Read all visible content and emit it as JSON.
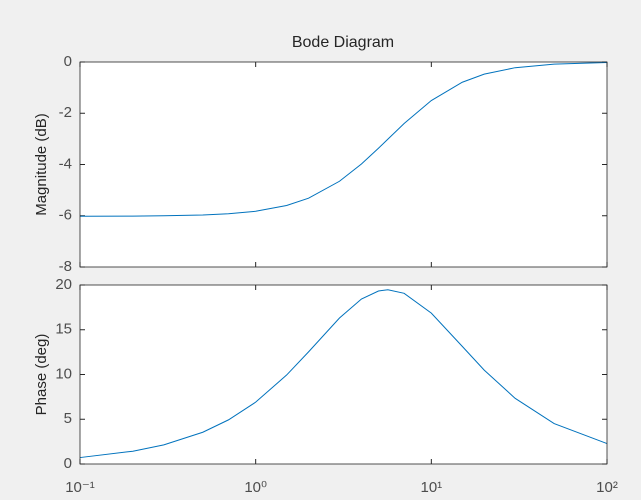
{
  "chart_data": [
    {
      "type": "line",
      "title": "Bode Diagram",
      "ylabel": "Magnitude (dB)",
      "xscale": "log",
      "x": [
        0.1,
        0.2,
        0.3,
        0.5,
        0.7,
        1,
        1.5,
        2,
        3,
        4,
        5,
        5.66,
        7,
        10,
        15,
        20,
        30,
        50,
        100
      ],
      "series": [
        {
          "color": "#0072bd",
          "values": [
            -6.019,
            -6.013,
            -6.002,
            -5.97,
            -5.923,
            -5.825,
            -5.599,
            -5.315,
            -4.654,
            -3.979,
            -3.366,
            -3.01,
            -2.401,
            -1.504,
            -0.789,
            -0.474,
            -0.222,
            -0.082,
            -0.021
          ]
        }
      ],
      "xlim": [
        0.1,
        100
      ],
      "ylim": [
        -8,
        0
      ],
      "yticks": [
        -8,
        -6,
        -4,
        -2,
        0
      ]
    },
    {
      "type": "line",
      "ylabel": "Phase (deg)",
      "xscale": "log",
      "x": [
        0.1,
        0.2,
        0.3,
        0.5,
        0.7,
        1,
        1.5,
        2,
        3,
        4,
        5,
        5.66,
        7,
        10,
        15,
        20,
        30,
        50,
        100
      ],
      "series": [
        {
          "color": "#0072bd",
          "values": [
            0.72,
            1.43,
            2.14,
            3.55,
            4.93,
            6.91,
            9.94,
            12.53,
            16.31,
            18.43,
            19.33,
            19.47,
            19.07,
            16.86,
            13.14,
            10.49,
            7.34,
            4.52,
            2.28
          ]
        }
      ],
      "xlim": [
        0.1,
        100
      ],
      "ylim": [
        0,
        20
      ],
      "yticks": [
        0,
        5,
        10,
        15,
        20
      ],
      "xticks": [
        {
          "value": 0.1,
          "label": "10⁻¹"
        },
        {
          "value": 1,
          "label": "10⁰"
        },
        {
          "value": 10,
          "label": "10¹"
        },
        {
          "value": 100,
          "label": "10²"
        }
      ]
    }
  ]
}
